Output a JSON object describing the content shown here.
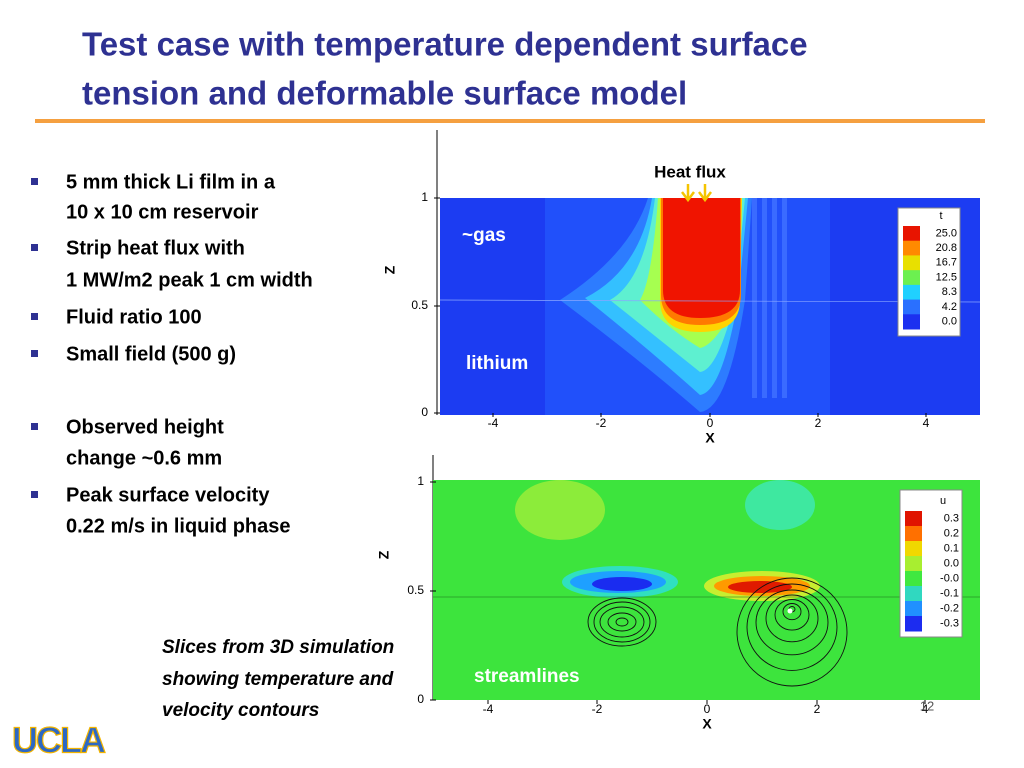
{
  "header": {
    "title_lines": [
      "Test case with temperature dependent surface",
      "tension and deformable surface model"
    ]
  },
  "bullets": [
    {
      "lines": [
        "5 mm thick Li film in a",
        "10 x 10 cm reservoir"
      ]
    },
    {
      "lines": [
        "Strip heat flux with",
        "1 MW/m2 peak 1 cm width"
      ]
    },
    {
      "lines": [
        "Fluid ratio 100"
      ]
    },
    {
      "lines": [
        "Small field (500 g)"
      ]
    },
    {
      "lines": [
        "Observed height",
        "change ~0.6 mm"
      ]
    },
    {
      "lines": [
        "Peak surface velocity",
        "0.22 m/s in liquid phase"
      ]
    }
  ],
  "plots": [
    {
      "z_label": "Z",
      "x_label": "X",
      "x_ticks": [
        "-4",
        "-2",
        "0",
        "2",
        "4"
      ],
      "y_ticks": [
        "0",
        "0.5",
        "1"
      ],
      "legend_title": "t",
      "legend_levels": [
        "25.0",
        "20.8",
        "16.7",
        "12.5",
        "8.3",
        "4.2",
        "0.0"
      ],
      "annotations": [
        "~gas",
        "lithium"
      ]
    },
    {
      "z_label": "Z",
      "x_label": "X",
      "x_ticks": [
        "-4",
        "-2",
        "0",
        "2",
        "4"
      ],
      "y_ticks": [
        "0",
        "0.5",
        "1"
      ],
      "legend_title": "u",
      "legend_levels": [
        "0.3",
        "0.2",
        "0.1",
        "0.0",
        "-0.0",
        "-0.1",
        "-0.2",
        "-0.3"
      ],
      "annotations": [
        "streamlines"
      ]
    }
  ],
  "heat_flux": "Heat flux",
  "caption": [
    "Slices from 3D simulation",
    "showing temperature and",
    "velocity contours"
  ],
  "page_number": "12",
  "logo": "UCLA"
}
